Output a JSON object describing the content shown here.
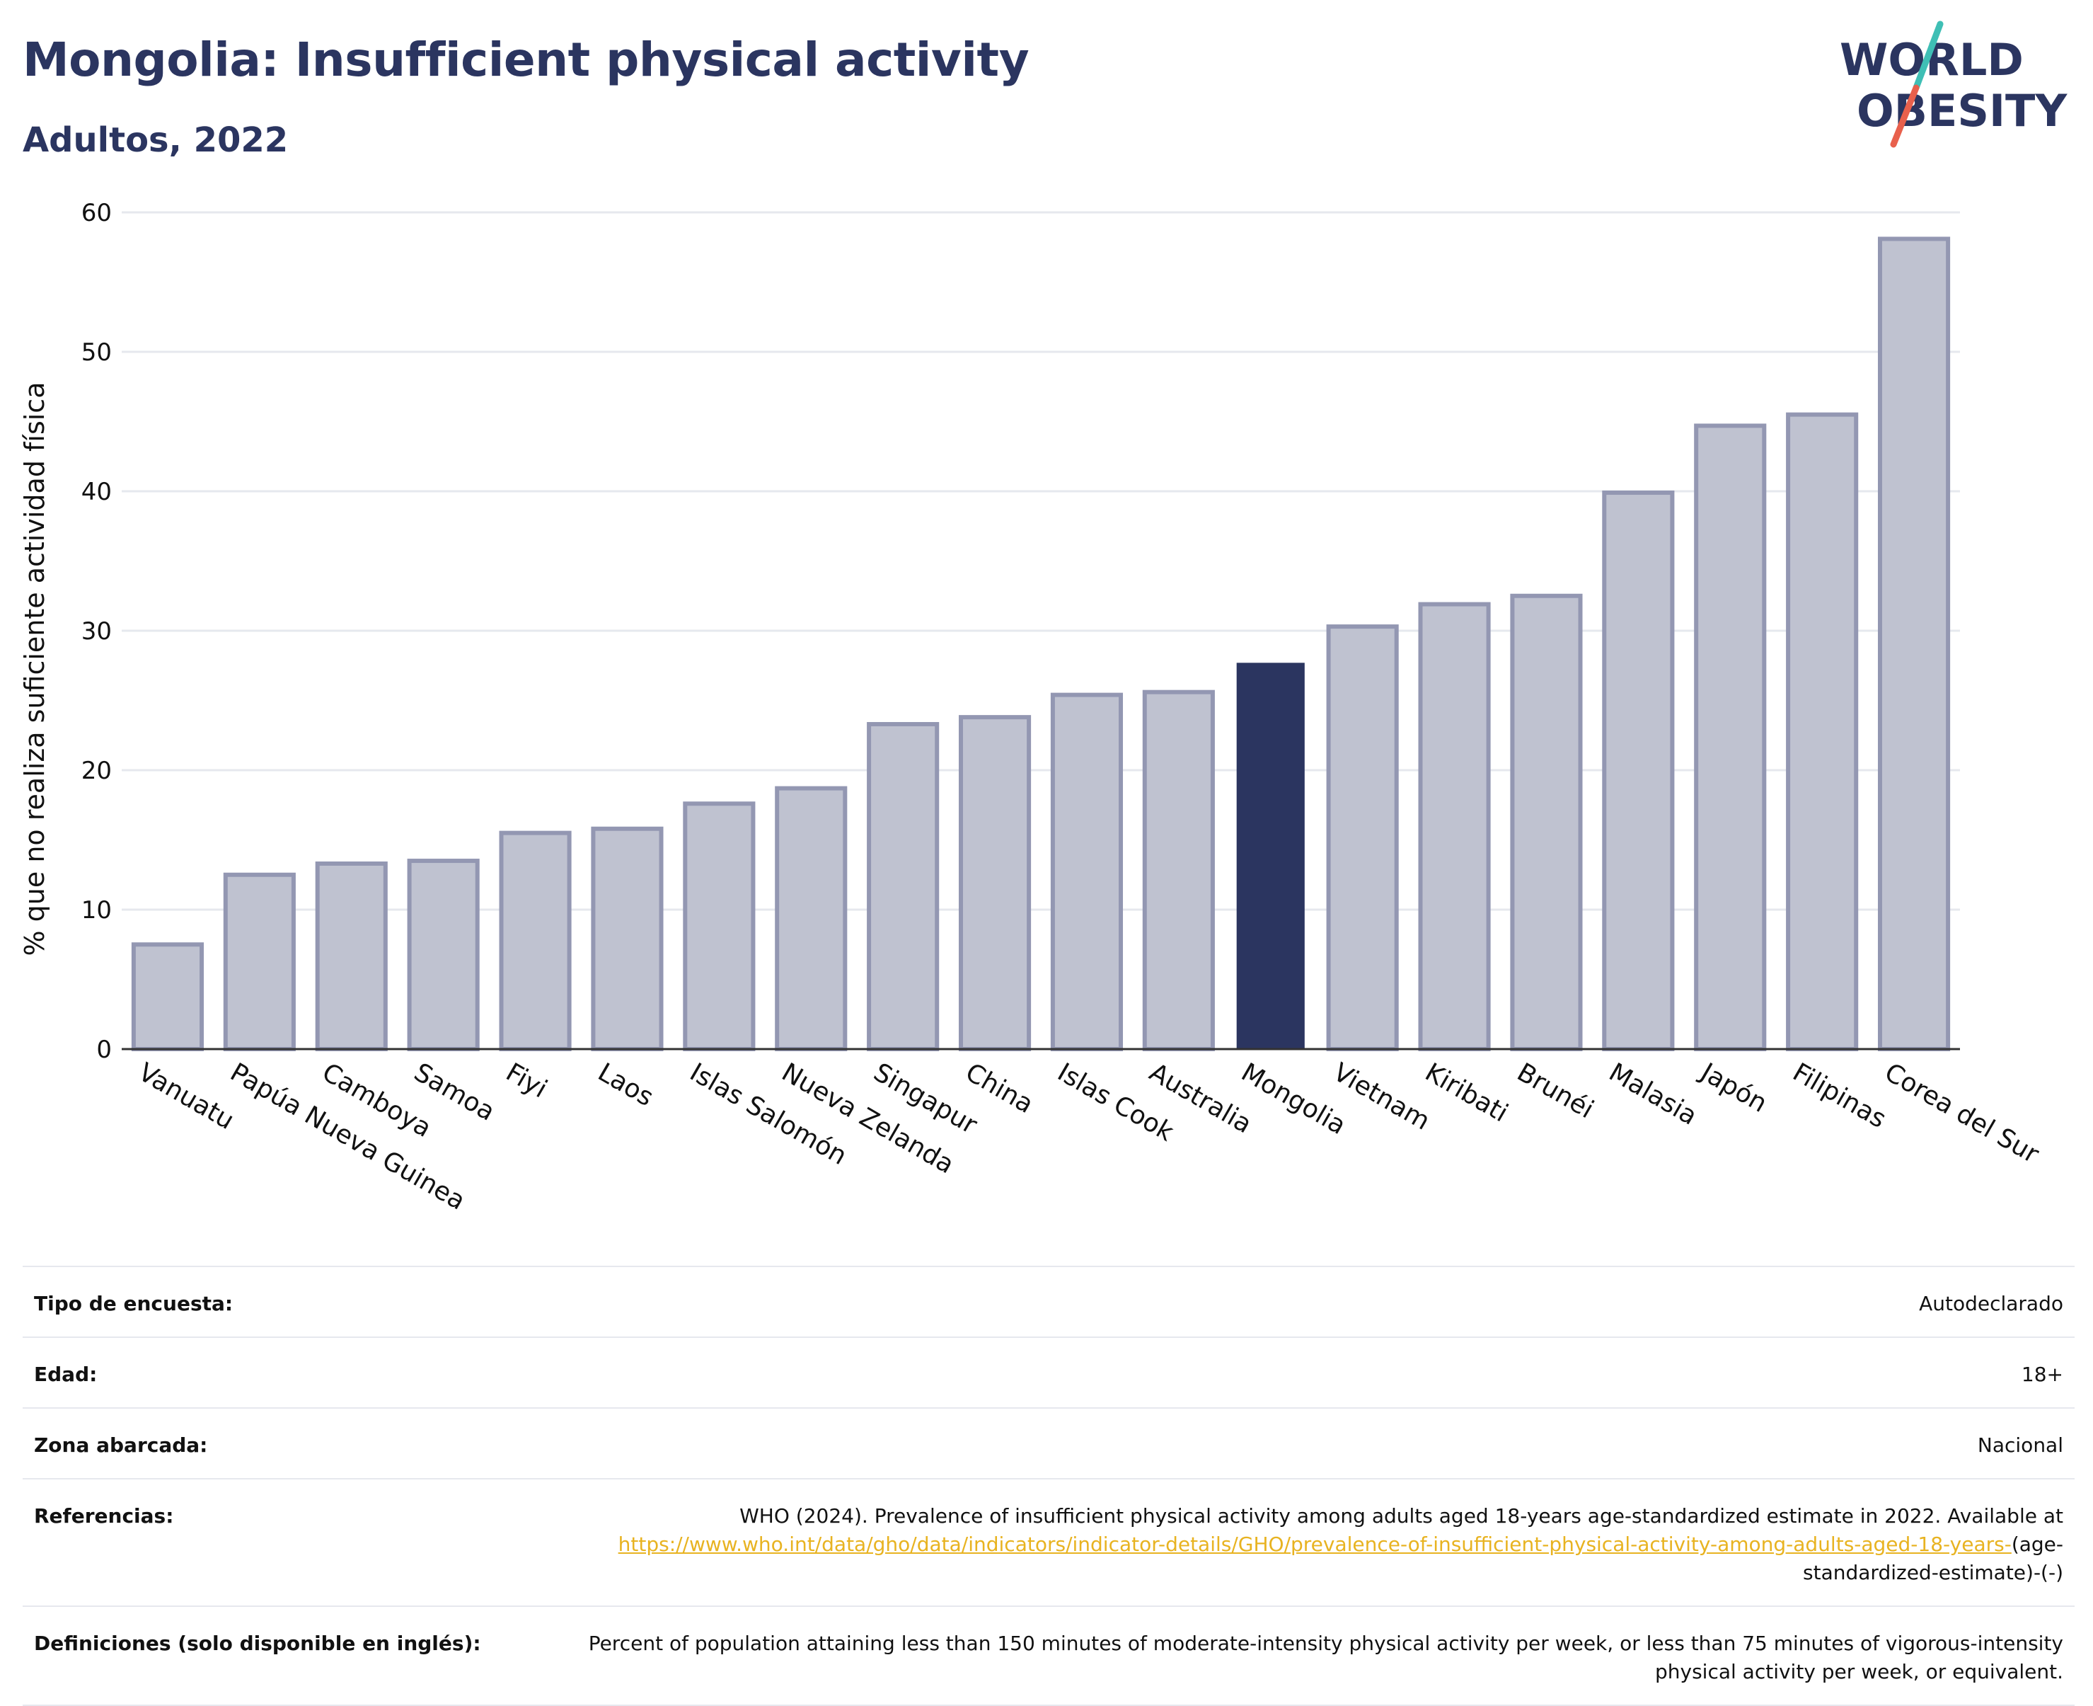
{
  "header": {
    "title": "Mongolia: Insufficient physical activity",
    "subtitle": "Adultos, 2022"
  },
  "logo": {
    "line1": "WORLD",
    "line2": "OBESITY",
    "icon": "world-obesity-logo"
  },
  "colors": {
    "title": "#2b3560",
    "bar": "#bfc2d0",
    "bar_border": "#9397b2",
    "highlight": "#2b3560",
    "grid": "#e6e8ee",
    "link": "#e8b321",
    "logo_teal": "#3fbfb5",
    "logo_red": "#e8604c"
  },
  "chart_data": {
    "type": "bar",
    "title": "Mongolia: Insufficient physical activity",
    "subtitle": "Adultos, 2022",
    "ylabel": "% que no realiza suficiente actividad física",
    "xlabel": "",
    "ylim": [
      0,
      60
    ],
    "yticks": [
      0,
      10,
      20,
      30,
      40,
      50,
      60
    ],
    "grid": true,
    "highlight": "Mongolia",
    "categories": [
      "Vanuatu",
      "Papúa Nueva Guinea",
      "Camboya",
      "Samoa",
      "Fiyi",
      "Laos",
      "Islas Salomón",
      "Nueva Zelanda",
      "Singapur",
      "China",
      "Islas Cook",
      "Australia",
      "Mongolia",
      "Vietnam",
      "Kiribati",
      "Brunéi",
      "Malasia",
      "Japón",
      "Filipinas",
      "Corea del Sur"
    ],
    "values": [
      7.5,
      12.5,
      13.3,
      13.5,
      15.5,
      15.8,
      17.6,
      18.7,
      23.3,
      23.8,
      25.4,
      25.6,
      27.7,
      30.3,
      31.9,
      32.5,
      39.9,
      44.7,
      45.5,
      58.1
    ]
  },
  "details": [
    {
      "label": "Tipo de encuesta:",
      "value": "Autodeclarado"
    },
    {
      "label": "Edad:",
      "value": "18+"
    },
    {
      "label": "Zona abarcada:",
      "value": "Nacional"
    },
    {
      "label": "Referencias:",
      "value": "WHO (2024). Prevalence of insufficient physical activity among adults aged 18-years age-standardized estimate in 2022. Available at",
      "link": "https://www.who.int/data/gho/data/indicators/indicator-details/GHO/prevalence-of-insufficient-physical-activity-among-adults-aged-18-years-",
      "suffix": "(age-standardized-estimate)-(-)"
    },
    {
      "label": "Definiciones (solo disponible en inglés):",
      "value": "Percent of population attaining less than 150 minutes of moderate-intensity physical activity per week, or less than 75 minutes of vigorous-intensity physical activity per week, or equivalent."
    }
  ]
}
